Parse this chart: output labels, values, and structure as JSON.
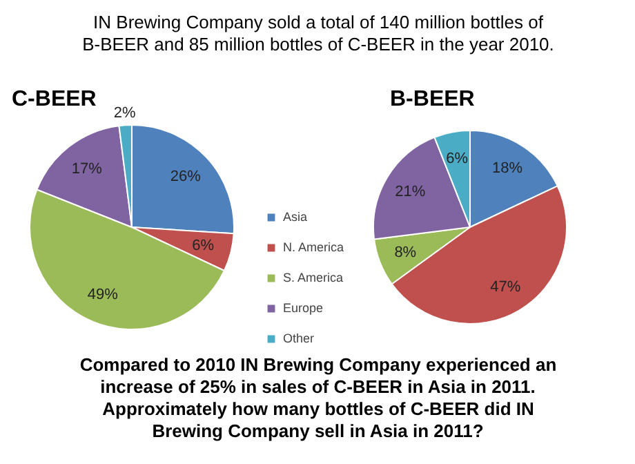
{
  "chart_data": [
    {
      "type": "pie",
      "title": "C-BEER",
      "categories": [
        "Asia",
        "N. America",
        "S. America",
        "Europe",
        "Other"
      ],
      "values": [
        26,
        6,
        49,
        17,
        2
      ],
      "value_labels": [
        "26%",
        "6%",
        "49%",
        "17%",
        "2%"
      ],
      "colors": [
        "#4f81bd",
        "#c0504d",
        "#9bbb59",
        "#8064a2",
        "#4bacc6"
      ],
      "legend": "right",
      "annotations": [
        "IN Brewing Company sold a total of 140 million bottles of B-BEER and 85 million bottles of C-BEER in the year 2010.",
        "Compared to 2010 IN Brewing Company experienced an increase of 25% in sales of C-BEER in Asia in 2011. Approximately how many bottles of C-BEER did IN Brewing Company sell in Asia in 2011?"
      ]
    },
    {
      "type": "pie",
      "title": "B-BEER",
      "categories": [
        null,
        null,
        null,
        null,
        null
      ],
      "values": [
        18,
        47,
        8,
        21,
        6
      ],
      "value_labels": [
        "18%",
        "47%",
        "8%",
        "21%",
        "6%"
      ],
      "colors": [
        "#4f81bd",
        "#c0504d",
        "#9bbb59",
        "#8064a2",
        "#4bacc6"
      ]
    }
  ]
}
